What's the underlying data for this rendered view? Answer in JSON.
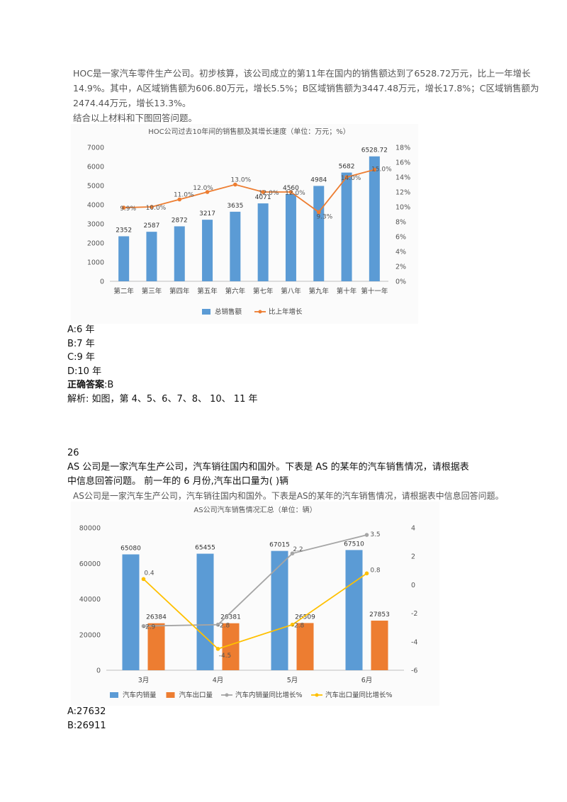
{
  "q25": {
    "passage_lines": [
      "HOC是一家汽车零件生产公司。初步核算，该公司成立的第11年在国内的销售额达到了6528.72万元，比上一年增长",
      "14.9%。其中，A区域销售额为606.80万元，增长5.5%；B区域销售额为3447.48万元，增长17.8%；C区域销售额为",
      "2474.44万元，增长13.3%。",
      "结合以上材料和下图回答问题。"
    ],
    "options": [
      "A:6 年",
      "B:7 年",
      "C:9 年",
      "D:10 年"
    ],
    "answer_label": "正确答案",
    "answer_value": ":B",
    "analysis": "解析: 如图，第 4、5、6、7、8、 10、 11 年"
  },
  "q26": {
    "number": "26",
    "question_lines": [
      "AS 公司是一家汽车生产公司，汽车销往国内和国外。下表是 AS 的某年的汽车销售情况，请根据表",
      "中信息回答问题。  前一年的 6 月份,汽车出口量为(  )辆"
    ],
    "image_caption": "AS公司是一家汽车生产公司，汽车销往国内和国外。下表是AS的某年的汽车销售情况，请根据表中信息回答问题。",
    "options": [
      "A:27632",
      "B:26911"
    ]
  },
  "chart_data": [
    {
      "type": "bar",
      "title": "HOC公司过去10年间的销售额及其增长速度（单位：万元；%）",
      "categories": [
        "第二年",
        "第三年",
        "第四年",
        "第五年",
        "第六年",
        "第七年",
        "第八年",
        "第九年",
        "第十年",
        "第十一年"
      ],
      "series": [
        {
          "name": "总销售额",
          "type": "bar",
          "axis": "left",
          "values": [
            2352,
            2587,
            2872,
            3217,
            3635,
            4071,
            4560,
            4984,
            5682,
            6528.72
          ],
          "labels": [
            "2352",
            "2587",
            "2872",
            "3217",
            "3635",
            "4071",
            "4560",
            "4984",
            "5682",
            "6528.72"
          ],
          "color": "#5b9bd5"
        },
        {
          "name": "比上年增长",
          "type": "line",
          "axis": "right",
          "values": [
            9.9,
            10.0,
            11.0,
            12.0,
            13.0,
            12.0,
            12.0,
            9.3,
            14.0,
            15.0
          ],
          "labels": [
            "9.9%",
            "10.0%",
            "11.0%",
            "12.0%",
            "13.0%",
            "12.0%",
            "12.0%",
            "9.3%",
            "14.0%",
            "15.0%"
          ],
          "color": "#ed7d31"
        }
      ],
      "ylim": [
        0,
        7000
      ],
      "yticks": [
        "7000",
        "6000",
        "5000",
        "4000",
        "3000",
        "2000",
        "1000",
        "0"
      ],
      "y2lim": [
        0,
        18
      ],
      "y2ticks": [
        "18%",
        "16%",
        "14%",
        "12%",
        "10%",
        "8%",
        "6%",
        "4%",
        "2%",
        "0%"
      ],
      "legend": "bottom"
    },
    {
      "type": "bar",
      "title": "AS公司汽车销售情况汇总（单位：辆）",
      "categories": [
        "3月",
        "4月",
        "5月",
        "6月"
      ],
      "series": [
        {
          "name": "汽车内销量",
          "type": "bar",
          "axis": "left",
          "values": [
            65080,
            65455,
            67015,
            67510
          ],
          "labels": [
            "65080",
            "65455",
            "67015",
            "67510"
          ],
          "color": "#5b9bd5"
        },
        {
          "name": "汽车出口量",
          "type": "bar",
          "axis": "left",
          "values": [
            26384,
            26381,
            26509,
            27853
          ],
          "labels": [
            "26384",
            "26381",
            "26509",
            "27853"
          ],
          "color": "#ed7d31"
        },
        {
          "name": "汽车内销量同比增长%",
          "type": "line",
          "axis": "right",
          "values": [
            -2.9,
            -2.8,
            2.2,
            3.5
          ],
          "labels": [
            "-2.9",
            "-2.8",
            "2.2",
            "3.5"
          ],
          "color": "#a5a5a5"
        },
        {
          "name": "汽车出口量同比增长%",
          "type": "line",
          "axis": "right",
          "values": [
            0.4,
            -4.5,
            -2.8,
            0.8
          ],
          "labels": [
            "0.4",
            "-4.5",
            "-2.8",
            "0.8"
          ],
          "color": "#ffc000"
        }
      ],
      "ylim": [
        0,
        80000
      ],
      "yticks": [
        "80000",
        "60000",
        "40000",
        "20000",
        "0"
      ],
      "y2lim": [
        -6,
        4
      ],
      "y2ticks": [
        "4",
        "2",
        "0",
        "-2",
        "-4",
        "-6"
      ],
      "legend": "bottom"
    }
  ]
}
